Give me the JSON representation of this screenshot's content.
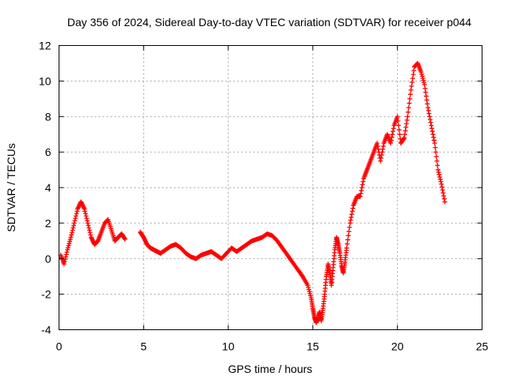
{
  "chart_data": {
    "type": "scatter",
    "title": "Day 356 of 2024, Sidereal Day-to-day VTEC variation (SDTVAR) for receiver p044",
    "xlabel": "GPS time / hours",
    "ylabel": "SDTVAR / TECUs",
    "xlim": [
      0,
      25
    ],
    "ylim": [
      -4,
      12
    ],
    "xticks": [
      0,
      5,
      10,
      15,
      20,
      25
    ],
    "yticks": [
      -4,
      -2,
      0,
      2,
      4,
      6,
      8,
      10,
      12
    ],
    "grid": true,
    "marker": "+",
    "color": "#ff0000",
    "series": [
      {
        "name": "SDTVAR",
        "x": [
          0.1,
          0.3,
          0.5,
          0.7,
          0.9,
          1.1,
          1.3,
          1.5,
          1.7,
          1.9,
          2.1,
          2.3,
          2.5,
          2.7,
          2.9,
          3.1,
          3.3,
          3.5,
          3.7,
          3.9,
          4.8,
          5.0,
          5.2,
          5.4,
          5.6,
          5.8,
          6.0,
          6.3,
          6.6,
          6.9,
          7.2,
          7.5,
          7.8,
          8.1,
          8.4,
          8.7,
          9.0,
          9.3,
          9.6,
          9.9,
          10.2,
          10.5,
          10.8,
          11.1,
          11.4,
          11.7,
          12.0,
          12.3,
          12.6,
          12.9,
          13.2,
          13.5,
          13.8,
          14.1,
          14.4,
          14.7,
          14.9,
          15.0,
          15.1,
          15.2,
          15.3,
          15.4,
          15.5,
          15.6,
          15.7,
          15.8,
          15.9,
          16.0,
          16.1,
          16.2,
          16.3,
          16.4,
          16.5,
          16.6,
          16.7,
          16.8,
          16.9,
          17.0,
          17.2,
          17.4,
          17.6,
          17.8,
          18.0,
          18.2,
          18.4,
          18.6,
          18.8,
          19.0,
          19.2,
          19.4,
          19.6,
          19.8,
          20.0,
          20.2,
          20.4,
          20.6,
          20.8,
          21.0,
          21.2,
          21.4,
          21.6,
          21.8,
          22.0,
          22.2,
          22.4,
          22.6,
          22.8
        ],
        "y": [
          0.2,
          -0.3,
          0.5,
          1.2,
          2.0,
          2.8,
          3.2,
          2.8,
          2.0,
          1.2,
          0.8,
          1.0,
          1.5,
          2.0,
          2.2,
          1.6,
          1.0,
          1.2,
          1.4,
          1.1,
          1.5,
          1.2,
          0.8,
          0.6,
          0.5,
          0.4,
          0.3,
          0.5,
          0.7,
          0.8,
          0.6,
          0.3,
          0.1,
          0.0,
          0.2,
          0.3,
          0.4,
          0.2,
          0.0,
          0.3,
          0.6,
          0.4,
          0.6,
          0.8,
          1.0,
          1.1,
          1.2,
          1.4,
          1.3,
          1.0,
          0.6,
          0.2,
          -0.2,
          -0.6,
          -1.0,
          -1.5,
          -2.2,
          -2.8,
          -3.3,
          -3.6,
          -3.4,
          -3.0,
          -3.5,
          -2.8,
          -2.0,
          -1.0,
          -0.3,
          -0.8,
          -1.5,
          -0.5,
          0.5,
          1.2,
          0.8,
          0.3,
          -0.4,
          -0.8,
          -0.2,
          0.6,
          2.0,
          3.0,
          3.5,
          3.5,
          4.5,
          5.0,
          5.5,
          6.0,
          6.5,
          5.5,
          6.5,
          7.0,
          6.5,
          7.5,
          8.0,
          6.5,
          6.8,
          8.0,
          9.5,
          10.8,
          11.0,
          10.5,
          9.8,
          8.5,
          7.5,
          6.5,
          5.0,
          4.2,
          3.2
        ]
      }
    ]
  }
}
